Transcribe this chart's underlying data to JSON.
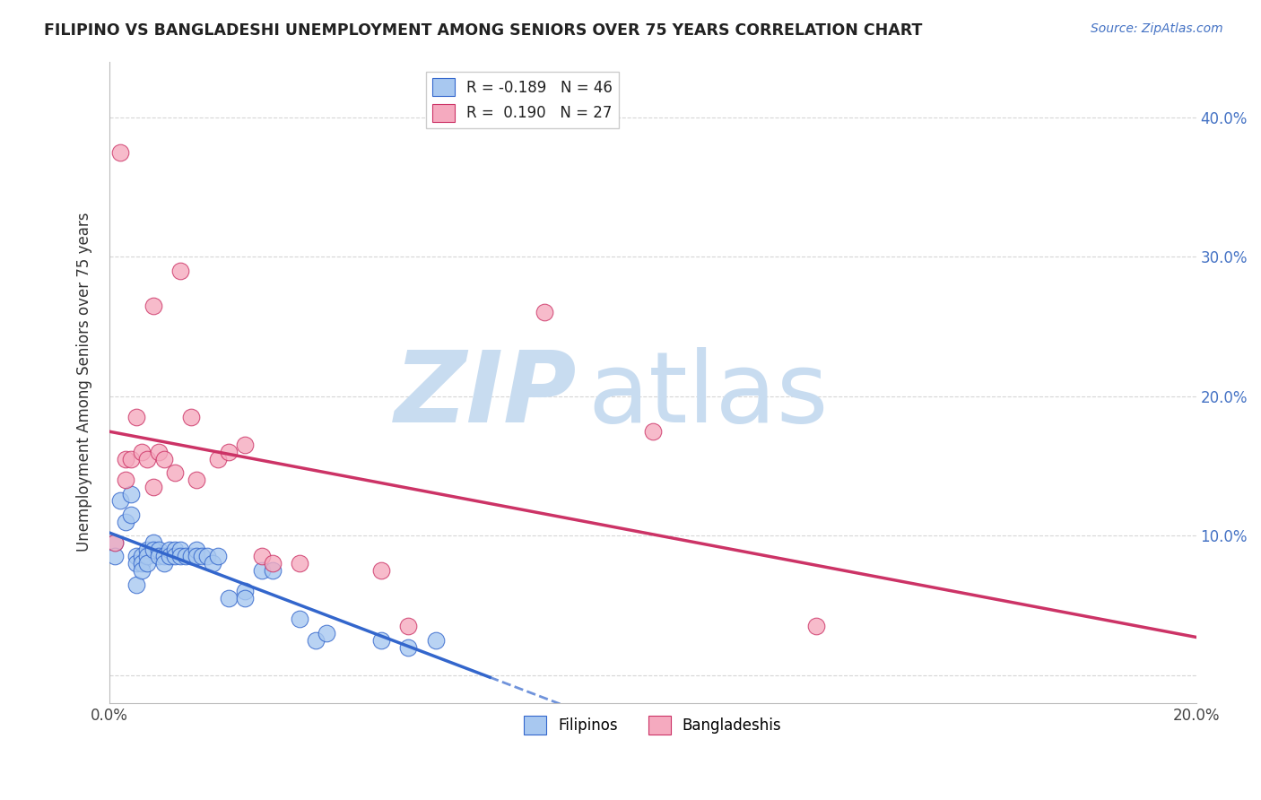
{
  "title": "FILIPINO VS BANGLADESHI UNEMPLOYMENT AMONG SENIORS OVER 75 YEARS CORRELATION CHART",
  "source": "Source: ZipAtlas.com",
  "ylabel": "Unemployment Among Seniors over 75 years",
  "xlim": [
    0.0,
    0.2
  ],
  "ylim": [
    -0.02,
    0.44
  ],
  "r_filipino": -0.189,
  "n_filipino": 46,
  "r_bangladeshi": 0.19,
  "n_bangladeshi": 27,
  "filipino_color": "#A8C8F0",
  "bangladeshi_color": "#F5AABF",
  "filipino_line_color": "#3366CC",
  "bangladeshi_line_color": "#CC3366",
  "right_axis_color": "#4472C4",
  "watermark_zip_color": "#C8DCF0",
  "watermark_atlas_color": "#C8DCF0",
  "filipino_points_x": [
    0.001,
    0.001,
    0.002,
    0.003,
    0.004,
    0.004,
    0.005,
    0.005,
    0.005,
    0.006,
    0.006,
    0.006,
    0.007,
    0.007,
    0.007,
    0.008,
    0.008,
    0.009,
    0.009,
    0.01,
    0.01,
    0.011,
    0.011,
    0.012,
    0.012,
    0.013,
    0.013,
    0.014,
    0.015,
    0.016,
    0.016,
    0.017,
    0.018,
    0.019,
    0.02,
    0.022,
    0.025,
    0.025,
    0.028,
    0.03,
    0.035,
    0.038,
    0.04,
    0.05,
    0.055,
    0.06
  ],
  "filipino_points_y": [
    0.095,
    0.085,
    0.125,
    0.11,
    0.13,
    0.115,
    0.085,
    0.08,
    0.065,
    0.085,
    0.08,
    0.075,
    0.09,
    0.085,
    0.08,
    0.095,
    0.09,
    0.09,
    0.085,
    0.085,
    0.08,
    0.09,
    0.085,
    0.09,
    0.085,
    0.09,
    0.085,
    0.085,
    0.085,
    0.09,
    0.085,
    0.085,
    0.085,
    0.08,
    0.085,
    0.055,
    0.06,
    0.055,
    0.075,
    0.075,
    0.04,
    0.025,
    0.03,
    0.025,
    0.02,
    0.025
  ],
  "bangladeshi_points_x": [
    0.001,
    0.002,
    0.003,
    0.003,
    0.004,
    0.005,
    0.006,
    0.007,
    0.008,
    0.008,
    0.009,
    0.01,
    0.012,
    0.013,
    0.015,
    0.016,
    0.02,
    0.022,
    0.025,
    0.028,
    0.03,
    0.035,
    0.05,
    0.055,
    0.08,
    0.1,
    0.13
  ],
  "bangladeshi_points_y": [
    0.095,
    0.375,
    0.155,
    0.14,
    0.155,
    0.185,
    0.16,
    0.155,
    0.265,
    0.135,
    0.16,
    0.155,
    0.145,
    0.29,
    0.185,
    0.14,
    0.155,
    0.16,
    0.165,
    0.085,
    0.08,
    0.08,
    0.075,
    0.035,
    0.26,
    0.175,
    0.035
  ],
  "solid_line_x_end": 0.07,
  "dashed_line_x_start": 0.07
}
